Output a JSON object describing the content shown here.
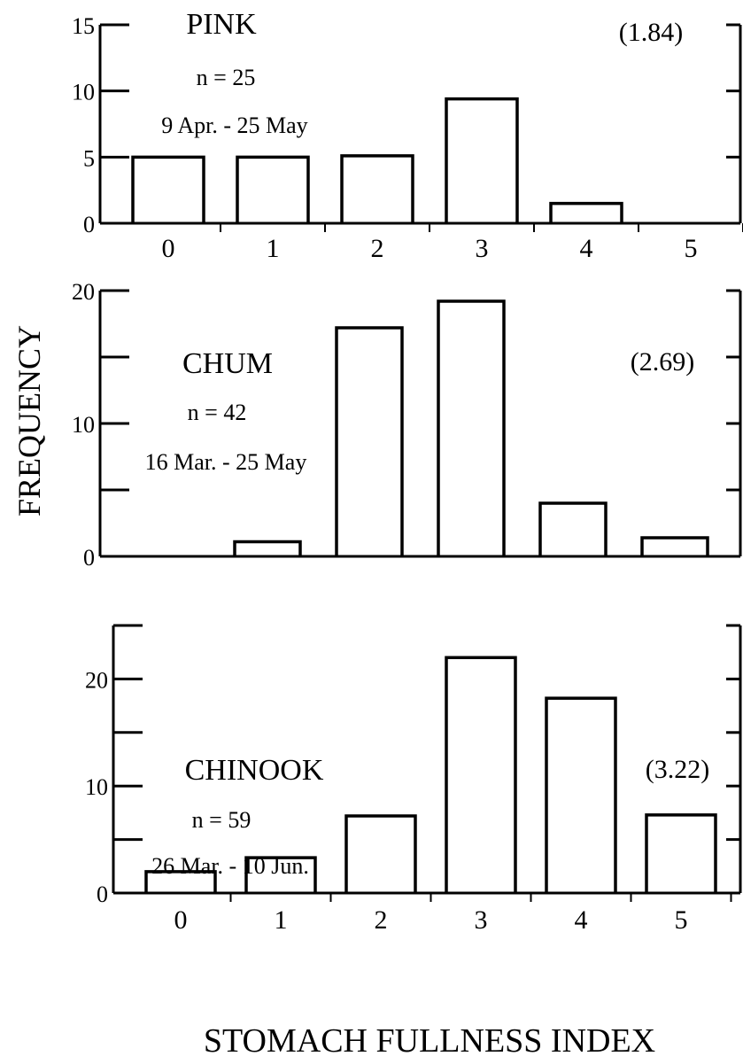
{
  "figure": {
    "ylabel": "FREQUENCY",
    "xlabel": "STOMACH FULLNESS INDEX"
  },
  "chart_data": [
    {
      "type": "bar",
      "title": "PINK",
      "n_label": "n = 25",
      "date_range": "9 Apr. - 25 May",
      "mean_label": "(1.84)",
      "categories": [
        "0",
        "1",
        "2",
        "3",
        "4",
        "5"
      ],
      "values": [
        5,
        5,
        5.1,
        9.4,
        1.5,
        0
      ],
      "ylim": [
        0,
        15
      ],
      "yticks": [
        0,
        5,
        10,
        15
      ],
      "ytick_labels": [
        "0",
        "5",
        "10",
        "15"
      ],
      "show_xtick_labels": true
    },
    {
      "type": "bar",
      "title": "CHUM",
      "n_label": "n = 42",
      "date_range": "16 Mar. - 25 May",
      "mean_label": "(2.69)",
      "categories": [
        "0",
        "1",
        "2",
        "3",
        "4",
        "5"
      ],
      "values": [
        0,
        1.1,
        17.2,
        19.2,
        4,
        1.4
      ],
      "ylim": [
        0,
        20
      ],
      "yticks": [
        0,
        5,
        10,
        15,
        20
      ],
      "ytick_labels": [
        "0",
        "",
        "10",
        "",
        "20"
      ],
      "show_xtick_labels": false
    },
    {
      "type": "bar",
      "title": "CHINOOK",
      "n_label": "n = 59",
      "date_range": "26 Mar. - 10 Jun.",
      "mean_label": "(3.22)",
      "categories": [
        "0",
        "1",
        "2",
        "3",
        "4",
        "5"
      ],
      "values": [
        2,
        3.3,
        7.2,
        22,
        18.2,
        7.3
      ],
      "ylim": [
        0,
        25
      ],
      "yticks": [
        0,
        5,
        10,
        15,
        20,
        25
      ],
      "ytick_labels": [
        "0",
        "",
        "10",
        "",
        "20",
        ""
      ],
      "show_xtick_labels": true
    }
  ]
}
